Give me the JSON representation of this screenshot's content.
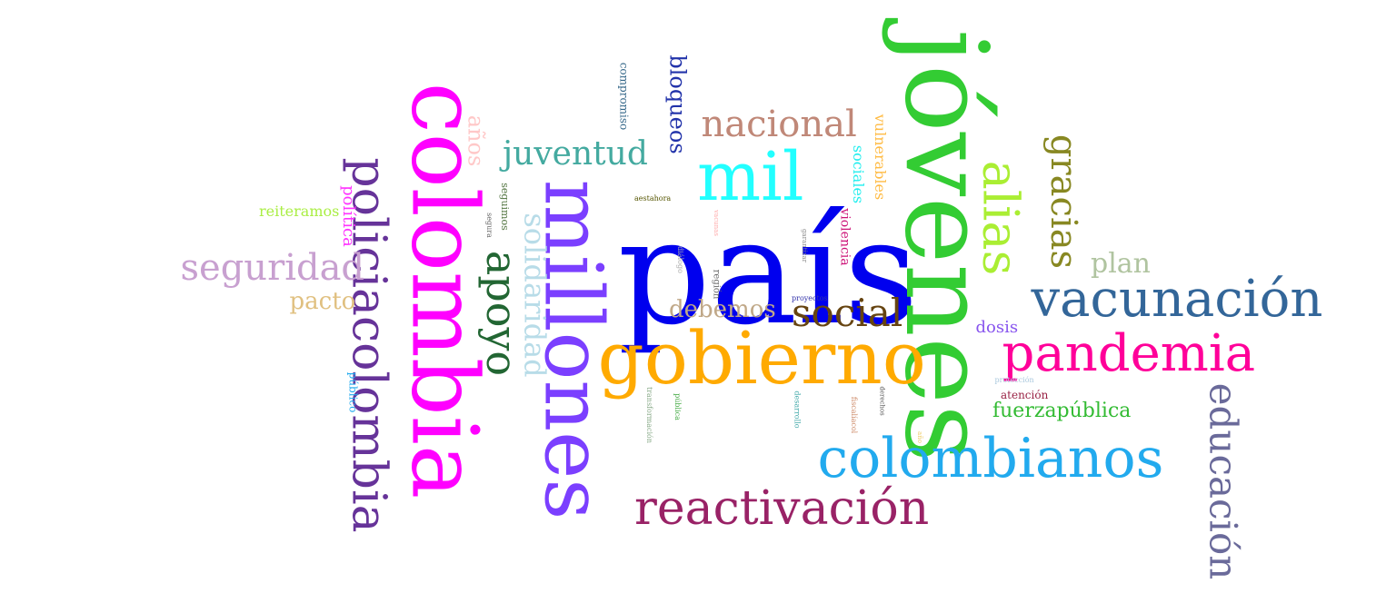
{
  "words": [
    {
      "text": "país",
      "color": "#0000ee"
    },
    {
      "text": "jóvenes",
      "color": "#33cc33"
    },
    {
      "text": "colombia",
      "color": "#ff00ff"
    },
    {
      "text": "millones",
      "color": "#7b3fff"
    },
    {
      "text": "gobierno",
      "color": "#ffaa00"
    },
    {
      "text": "mil",
      "color": "#22ffff"
    },
    {
      "text": "colombianos",
      "color": "#22aaee"
    },
    {
      "text": "policiacolombia",
      "color": "#663399"
    },
    {
      "text": "vacunación",
      "color": "#336699"
    },
    {
      "text": "pandemia",
      "color": "#ff0099"
    },
    {
      "text": "reactivación",
      "color": "#992266"
    },
    {
      "text": "alias",
      "color": "#aaee33"
    },
    {
      "text": "apoyo",
      "color": "#226633"
    },
    {
      "text": "educación",
      "color": "#6a6a9a"
    },
    {
      "text": "nacional",
      "color": "#c08878"
    },
    {
      "text": "social",
      "color": "#664411"
    },
    {
      "text": "seguridad",
      "color": "#c8a0d0"
    },
    {
      "text": "gracias",
      "color": "#888822"
    },
    {
      "text": "juventud",
      "color": "#44aaa0"
    },
    {
      "text": "solidaridad",
      "color": "#b8dce8"
    },
    {
      "text": "plan",
      "color": "#b0c4a0"
    },
    {
      "text": "debemos",
      "color": "#c0a888"
    },
    {
      "text": "bloqueos",
      "color": "#2233aa"
    },
    {
      "text": "pacto",
      "color": "#e0c080"
    },
    {
      "text": "años",
      "color": "#ffc8c8"
    },
    {
      "text": "fuerzapública",
      "color": "#33bb33"
    },
    {
      "text": "política",
      "color": "#ff33ff"
    },
    {
      "text": "reiteramos",
      "color": "#aaee44"
    },
    {
      "text": "dosis",
      "color": "#8855ee"
    },
    {
      "text": "vulnerables",
      "color": "#ffbb44"
    },
    {
      "text": "sociales",
      "color": "#22eeee"
    },
    {
      "text": "violencia",
      "color": "#cc1177"
    },
    {
      "text": "compromiso",
      "color": "#336688"
    },
    {
      "text": "público",
      "color": "#22aaee"
    },
    {
      "text": "atención",
      "color": "#992244"
    },
    {
      "text": "seguimos",
      "color": "#557744"
    },
    {
      "text": "región",
      "color": "#666666"
    },
    {
      "text": "segura",
      "color": "#666666"
    },
    {
      "text": "aestahora",
      "color": "#555500"
    },
    {
      "text": "diálogo",
      "color": "#aaaaaa"
    },
    {
      "text": "proyectos",
      "color": "#3333aa"
    },
    {
      "text": "protección",
      "color": "#aac8dd"
    },
    {
      "text": "vacunas",
      "color": "#ffaaaa"
    },
    {
      "text": "garantizar",
      "color": "#888888"
    },
    {
      "text": "transformación",
      "color": "#88aa88"
    },
    {
      "text": "pública",
      "color": "#44aa44"
    },
    {
      "text": "desarrollo",
      "color": "#44aaaa"
    },
    {
      "text": "fiscalíacol",
      "color": "#cc8866"
    },
    {
      "text": "derechos",
      "color": "#555555"
    },
    {
      "text": "año",
      "color": "#eecc66"
    }
  ]
}
